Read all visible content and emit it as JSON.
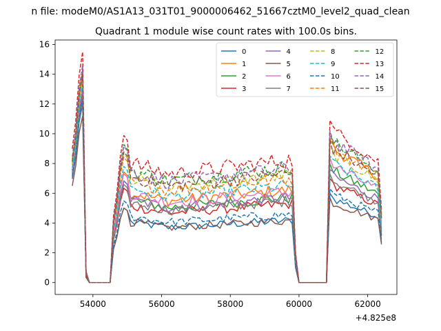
{
  "chart_data": {
    "type": "line",
    "title": "Quadrant 1 module wise count rates with 100.0s bins.",
    "suptitle": "n file: modeM0/AS1A13_031T01_9000006462_51667cztM0_level2_quad_clean",
    "xlabel": "",
    "ylabel": "",
    "x_offset_label": "+4.825e8",
    "xlim": [
      52900,
      62850
    ],
    "ylim": [
      -0.8,
      16.3
    ],
    "xticks": [
      54000,
      56000,
      58000,
      60000,
      62000
    ],
    "yticks": [
      0,
      2,
      4,
      6,
      8,
      10,
      12,
      14,
      16
    ],
    "grid": false,
    "legend": {
      "placement": "top-right",
      "columns": 4
    },
    "x_start": 53400,
    "x_step": 100,
    "segments": [
      [
        53400,
        53800
      ],
      [
        53900,
        54500
      ],
      [
        54600,
        59900
      ],
      [
        60000,
        60800
      ],
      [
        60900,
        62400
      ]
    ],
    "series": [
      {
        "name": "0",
        "color": "#1f77b4",
        "dashed": false,
        "base": 4.1,
        "peak1": 12.0,
        "peak3": 6.0
      },
      {
        "name": "1",
        "color": "#ff7f0e",
        "dashed": false,
        "base": 6.1,
        "peak1": 13.8,
        "peak3": 9.6
      },
      {
        "name": "2",
        "color": "#2ca02c",
        "dashed": false,
        "base": 5.6,
        "peak1": 12.7,
        "peak3": 8.0
      },
      {
        "name": "3",
        "color": "#d62728",
        "dashed": false,
        "base": 5.2,
        "peak1": 13.0,
        "peak3": 7.0
      },
      {
        "name": "4",
        "color": "#9467bd",
        "dashed": false,
        "base": 5.6,
        "peak1": 12.5,
        "peak3": 7.6
      },
      {
        "name": "5",
        "color": "#8c564b",
        "dashed": false,
        "base": 4.1,
        "peak1": 11.2,
        "peak3": 5.7
      },
      {
        "name": "6",
        "color": "#e377c2",
        "dashed": false,
        "base": 6.0,
        "peak1": 13.1,
        "peak3": 8.4
      },
      {
        "name": "7",
        "color": "#7f7f7f",
        "dashed": false,
        "base": 5.4,
        "peak1": 12.2,
        "peak3": 7.3
      },
      {
        "name": "8",
        "color": "#bcbd22",
        "dashed": true,
        "base": 7.1,
        "peak1": 13.6,
        "peak3": 9.2
      },
      {
        "name": "9",
        "color": "#17becf",
        "dashed": true,
        "base": 6.4,
        "peak1": 13.3,
        "peak3": 8.5
      },
      {
        "name": "10",
        "color": "#1f77b4",
        "dashed": true,
        "base": 4.5,
        "peak1": 12.3,
        "peak3": 6.3
      },
      {
        "name": "11",
        "color": "#ff7f0e",
        "dashed": true,
        "base": 6.9,
        "peak1": 14.3,
        "peak3": 9.7
      },
      {
        "name": "12",
        "color": "#2ca02c",
        "dashed": true,
        "base": 7.6,
        "peak1": 14.1,
        "peak3": 10.1
      },
      {
        "name": "13",
        "color": "#d62728",
        "dashed": true,
        "base": 8.1,
        "peak1": 15.5,
        "peak3": 10.9
      },
      {
        "name": "14",
        "color": "#9467bd",
        "dashed": true,
        "base": 7.5,
        "peak1": 14.6,
        "peak3": 10.2
      },
      {
        "name": "15",
        "color": "#8c564b",
        "dashed": true,
        "base": 7.2,
        "peak1": 14.0,
        "peak3": 9.6
      }
    ]
  }
}
